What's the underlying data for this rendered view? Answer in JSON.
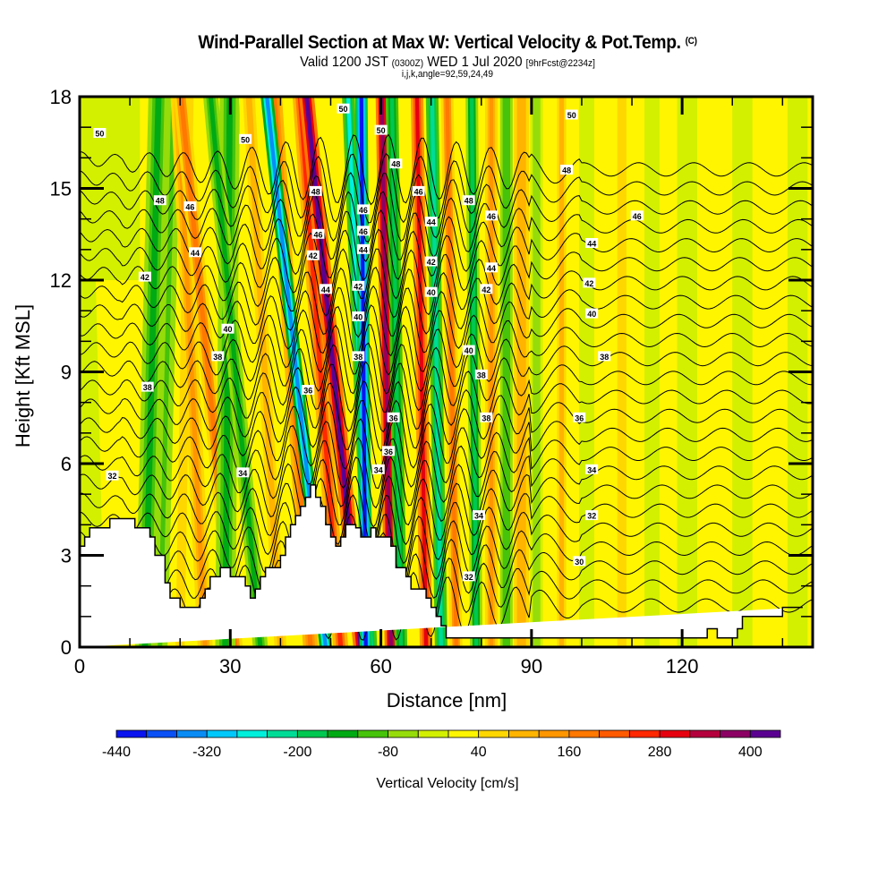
{
  "header": {
    "title": "Wind-Parallel Section at Max W: Vertical Velocity & Pot.Temp.",
    "copyright": "(C)",
    "valid_prefix": "Valid 1200 JST",
    "valid_utc": "(0300Z)",
    "valid_date": "WED 1 Jul 2020",
    "forecast": "[9hrFcst@2234z]",
    "grid_info": "i,j,k,angle=92,59,24,49"
  },
  "chart_data": {
    "type": "heatmap",
    "title": "Wind-Parallel Section at Max W: Vertical Velocity & Pot.Temp.",
    "xlabel": "Distance [nm]",
    "ylabel": "Height [Kft MSL]",
    "xlim": [
      0,
      146
    ],
    "ylim": [
      0,
      18
    ],
    "xticks": [
      0,
      30,
      60,
      90,
      120
    ],
    "yticks": [
      0,
      3,
      6,
      9,
      12,
      15,
      18
    ],
    "x_minor_step": 10,
    "y_minor_step": 1,
    "grid": false,
    "colorbar": {
      "title": "Vertical Velocity [cm/s]",
      "placement": "bottom",
      "min": -440,
      "max": 440,
      "step": 40,
      "tick_labels": [
        "-440",
        "-320",
        "-200",
        "-80",
        "40",
        "160",
        "280",
        "400"
      ],
      "tick_values": [
        -440,
        -320,
        -200,
        -80,
        40,
        160,
        280,
        400
      ],
      "colors": [
        "#0a14f0",
        "#0a50f5",
        "#0a8cf5",
        "#00c8fa",
        "#00f0dc",
        "#00dc96",
        "#00c850",
        "#00aa14",
        "#46c30a",
        "#96dc0a",
        "#d2f000",
        "#fff500",
        "#ffd700",
        "#ffb400",
        "#ff9600",
        "#ff7800",
        "#ff5a00",
        "#ff2800",
        "#e6000f",
        "#b4003c",
        "#8c0064",
        "#5a0091"
      ]
    },
    "terrain_kft": {
      "x_nm": [
        0,
        1,
        1,
        2,
        2,
        6,
        6,
        9,
        9,
        11,
        11,
        14,
        14,
        15,
        15,
        17,
        17,
        18,
        18,
        20,
        20,
        21,
        21,
        24,
        24,
        25,
        25,
        26,
        26,
        28,
        28,
        30,
        30,
        33,
        33,
        34,
        34,
        35,
        35,
        36,
        36,
        37,
        37,
        40,
        40,
        41,
        41,
        42,
        42,
        43,
        43,
        44,
        44,
        45,
        45,
        46,
        46,
        47,
        47,
        48,
        48,
        49,
        49,
        50,
        50,
        51,
        51,
        52,
        52,
        53,
        53,
        55,
        55,
        56,
        56,
        58,
        58,
        59,
        59,
        62,
        62,
        63,
        63,
        65,
        65,
        66,
        66,
        69,
        69,
        70,
        70,
        71,
        71,
        72,
        72,
        73,
        73,
        74,
        74,
        75,
        75,
        78,
        78,
        101,
        101,
        104,
        104,
        110,
        110,
        125,
        125,
        127,
        127,
        131,
        131,
        132,
        132,
        140,
        140,
        144,
        144,
        146
      ],
      "h_kft": [
        3.3,
        3.3,
        3.6,
        3.6,
        3.9,
        3.9,
        4.2,
        4.2,
        4.2,
        4.2,
        3.9,
        3.9,
        3.6,
        3.6,
        3.0,
        3.0,
        2.1,
        2.1,
        1.6,
        1.6,
        1.3,
        1.3,
        1.3,
        1.3,
        1.6,
        1.6,
        1.9,
        1.9,
        2.3,
        2.3,
        2.6,
        2.6,
        2.3,
        2.3,
        2.0,
        2.0,
        1.6,
        1.6,
        1.9,
        1.9,
        2.3,
        2.3,
        2.6,
        2.6,
        3.0,
        3.0,
        3.6,
        3.6,
        4.0,
        4.0,
        4.3,
        4.3,
        4.6,
        4.6,
        4.9,
        4.9,
        5.3,
        5.3,
        4.9,
        4.9,
        4.6,
        4.6,
        4.0,
        4.0,
        3.6,
        3.6,
        3.3,
        3.3,
        3.6,
        3.6,
        4.0,
        4.0,
        3.9,
        3.9,
        3.6,
        3.6,
        3.9,
        3.9,
        3.6,
        3.6,
        3.3,
        3.3,
        2.6,
        2.6,
        2.3,
        2.3,
        1.9,
        1.9,
        1.6,
        1.6,
        1.3,
        1.3,
        1.0,
        1.0,
        0.7,
        0.7,
        0.3,
        0.3,
        0.3,
        0.3,
        0.3,
        0.3,
        0.3,
        0.3,
        0.3,
        0.3,
        0.3,
        0.3,
        0.3,
        0.3,
        0.6,
        0.6,
        0.3,
        0.3,
        0.6,
        0.6,
        1.0,
        1.0,
        1.3,
        1.3,
        1.3
      ],
      "fill": "#ffffff"
    },
    "background_velocity_cm_s": 30,
    "velocity_bands": [
      {
        "x_base_nm": 2,
        "tilt_nm_per_kft": -0.15,
        "width_nm": 6,
        "w_cm_s": -20
      },
      {
        "x_base_nm": 13,
        "tilt_nm_per_kft": 0.15,
        "width_nm": 4,
        "w_cm_s": -160
      },
      {
        "x_base_nm": 16,
        "tilt_nm_per_kft": 0.15,
        "width_nm": 3,
        "w_cm_s": -90
      },
      {
        "x_base_nm": 20,
        "tilt_nm_per_kft": 0.1,
        "width_nm": 3,
        "w_cm_s": 60
      },
      {
        "x_base_nm": 25,
        "tilt_nm_per_kft": -0.3,
        "width_nm": 3,
        "w_cm_s": 120
      },
      {
        "x_base_nm": 31,
        "tilt_nm_per_kft": -0.6,
        "width_nm": 3,
        "w_cm_s": 160
      },
      {
        "x_base_nm": 29,
        "tilt_nm_per_kft": 0.05,
        "width_nm": 4,
        "w_cm_s": -130
      },
      {
        "x_base_nm": 36,
        "tilt_nm_per_kft": -0.55,
        "width_nm": 3,
        "w_cm_s": -150
      },
      {
        "x_base_nm": 40,
        "tilt_nm_per_kft": -0.35,
        "width_nm": 4,
        "w_cm_s": 80
      },
      {
        "x_base_nm": 46,
        "tilt_nm_per_kft": -0.4,
        "width_nm": 3,
        "w_cm_s": 190
      },
      {
        "x_base_nm": 49,
        "tilt_nm_per_kft": -0.65,
        "width_nm": 2.5,
        "w_cm_s": -330
      },
      {
        "x_base_nm": 52,
        "tilt_nm_per_kft": -0.45,
        "width_nm": 3,
        "w_cm_s": 260
      },
      {
        "x_base_nm": 56,
        "tilt_nm_per_kft": -0.6,
        "width_nm": 3,
        "w_cm_s": 400
      },
      {
        "x_base_nm": 58,
        "tilt_nm_per_kft": -0.25,
        "width_nm": 2.5,
        "w_cm_s": -260
      },
      {
        "x_base_nm": 57,
        "tilt_nm_per_kft": -0.05,
        "width_nm": 2.5,
        "w_cm_s": -420
      },
      {
        "x_base_nm": 62,
        "tilt_nm_per_kft": -0.1,
        "width_nm": 2.5,
        "w_cm_s": 380
      },
      {
        "x_base_nm": 64,
        "tilt_nm_per_kft": -0.1,
        "width_nm": 2.5,
        "w_cm_s": -200
      },
      {
        "x_base_nm": 69,
        "tilt_nm_per_kft": -0.1,
        "width_nm": 2.5,
        "w_cm_s": 300
      },
      {
        "x_base_nm": 72,
        "tilt_nm_per_kft": -0.1,
        "width_nm": 2.5,
        "w_cm_s": -230
      },
      {
        "x_base_nm": 75,
        "tilt_nm_per_kft": -0.1,
        "width_nm": 2.5,
        "w_cm_s": 170
      },
      {
        "x_base_nm": 79,
        "tilt_nm_per_kft": -0.05,
        "width_nm": 2.5,
        "w_cm_s": -170
      },
      {
        "x_base_nm": 82,
        "tilt_nm_per_kft": 0.0,
        "width_nm": 2.5,
        "w_cm_s": 150
      },
      {
        "x_base_nm": 85,
        "tilt_nm_per_kft": 0.0,
        "width_nm": 2.5,
        "w_cm_s": -120
      },
      {
        "x_base_nm": 88,
        "tilt_nm_per_kft": 0.0,
        "width_nm": 3,
        "w_cm_s": 110
      },
      {
        "x_base_nm": 91,
        "tilt_nm_per_kft": 0.0,
        "width_nm": 2.5,
        "w_cm_s": -60
      },
      {
        "x_base_nm": 96,
        "tilt_nm_per_kft": 0.0,
        "width_nm": 3,
        "w_cm_s": 80
      },
      {
        "x_base_nm": 101,
        "tilt_nm_per_kft": 0.0,
        "width_nm": 3,
        "w_cm_s": -20
      },
      {
        "x_base_nm": 108,
        "tilt_nm_per_kft": 0.0,
        "width_nm": 3,
        "w_cm_s": 60
      },
      {
        "x_base_nm": 114,
        "tilt_nm_per_kft": 0.0,
        "width_nm": 3,
        "w_cm_s": -10
      },
      {
        "x_base_nm": 121,
        "tilt_nm_per_kft": 0.0,
        "width_nm": 4,
        "w_cm_s": -10
      },
      {
        "x_base_nm": 132,
        "tilt_nm_per_kft": 0.0,
        "width_nm": 4,
        "w_cm_s": -10
      },
      {
        "x_base_nm": 143,
        "tilt_nm_per_kft": 0.0,
        "width_nm": 4,
        "w_cm_s": -10
      }
    ],
    "theta_contours": {
      "units": "K (labelled as last two digits, e.g. 32 = 302K)",
      "levels": [
        28,
        29,
        30,
        31,
        32,
        33,
        34,
        35,
        36,
        37,
        38,
        39,
        40,
        41,
        42,
        43,
        44,
        45,
        46,
        47,
        48,
        49,
        50,
        51
      ],
      "base_height_kft_at_level_30": 2.6,
      "spacing_kft_per_K": 0.62,
      "labels": [
        {
          "text": "50",
          "x_nm": 4,
          "y_kft": 16.8
        },
        {
          "text": "50",
          "x_nm": 33,
          "y_kft": 16.6
        },
        {
          "text": "48",
          "x_nm": 16,
          "y_kft": 14.6
        },
        {
          "text": "46",
          "x_nm": 22,
          "y_kft": 14.4
        },
        {
          "text": "44",
          "x_nm": 23,
          "y_kft": 12.9
        },
        {
          "text": "42",
          "x_nm": 13,
          "y_kft": 12.1
        },
        {
          "text": "40",
          "x_nm": 29.5,
          "y_kft": 10.4
        },
        {
          "text": "38",
          "x_nm": 27.5,
          "y_kft": 9.5
        },
        {
          "text": "38",
          "x_nm": 13.5,
          "y_kft": 8.5
        },
        {
          "text": "32",
          "x_nm": 6.5,
          "y_kft": 5.6
        },
        {
          "text": "34",
          "x_nm": 32.5,
          "y_kft": 5.7
        },
        {
          "text": "50",
          "x_nm": 52.5,
          "y_kft": 17.6
        },
        {
          "text": "50",
          "x_nm": 60,
          "y_kft": 16.9
        },
        {
          "text": "48",
          "x_nm": 47,
          "y_kft": 14.9
        },
        {
          "text": "48",
          "x_nm": 63,
          "y_kft": 15.8
        },
        {
          "text": "46",
          "x_nm": 47.5,
          "y_kft": 13.5
        },
        {
          "text": "46",
          "x_nm": 67.5,
          "y_kft": 14.9
        },
        {
          "text": "46",
          "x_nm": 56.5,
          "y_kft": 14.3
        },
        {
          "text": "46",
          "x_nm": 56.5,
          "y_kft": 13.6
        },
        {
          "text": "44",
          "x_nm": 56.5,
          "y_kft": 13.0
        },
        {
          "text": "44",
          "x_nm": 70,
          "y_kft": 13.9
        },
        {
          "text": "42",
          "x_nm": 46.5,
          "y_kft": 12.8
        },
        {
          "text": "44",
          "x_nm": 49,
          "y_kft": 11.7
        },
        {
          "text": "42",
          "x_nm": 55.5,
          "y_kft": 11.8
        },
        {
          "text": "42",
          "x_nm": 70,
          "y_kft": 12.6
        },
        {
          "text": "40",
          "x_nm": 70,
          "y_kft": 11.6
        },
        {
          "text": "40",
          "x_nm": 55.5,
          "y_kft": 10.8
        },
        {
          "text": "38",
          "x_nm": 55.5,
          "y_kft": 9.5
        },
        {
          "text": "36",
          "x_nm": 45.5,
          "y_kft": 8.4
        },
        {
          "text": "36",
          "x_nm": 62.5,
          "y_kft": 7.5
        },
        {
          "text": "36",
          "x_nm": 61.5,
          "y_kft": 6.4
        },
        {
          "text": "34",
          "x_nm": 59.5,
          "y_kft": 5.8
        },
        {
          "text": "48",
          "x_nm": 77.5,
          "y_kft": 14.6
        },
        {
          "text": "46",
          "x_nm": 82,
          "y_kft": 14.1
        },
        {
          "text": "44",
          "x_nm": 82,
          "y_kft": 12.4
        },
        {
          "text": "42",
          "x_nm": 81,
          "y_kft": 11.7
        },
        {
          "text": "40",
          "x_nm": 77.5,
          "y_kft": 9.7
        },
        {
          "text": "38",
          "x_nm": 80,
          "y_kft": 8.9
        },
        {
          "text": "38",
          "x_nm": 81,
          "y_kft": 7.5
        },
        {
          "text": "34",
          "x_nm": 79.5,
          "y_kft": 4.3
        },
        {
          "text": "32",
          "x_nm": 77.5,
          "y_kft": 2.3
        },
        {
          "text": "50",
          "x_nm": 98,
          "y_kft": 17.4
        },
        {
          "text": "48",
          "x_nm": 97,
          "y_kft": 15.6
        },
        {
          "text": "46",
          "x_nm": 111,
          "y_kft": 14.1
        },
        {
          "text": "44",
          "x_nm": 102,
          "y_kft": 13.2
        },
        {
          "text": "42",
          "x_nm": 101.5,
          "y_kft": 11.9
        },
        {
          "text": "40",
          "x_nm": 102,
          "y_kft": 10.9
        },
        {
          "text": "38",
          "x_nm": 104.5,
          "y_kft": 9.5
        },
        {
          "text": "36",
          "x_nm": 99.5,
          "y_kft": 7.5
        },
        {
          "text": "34",
          "x_nm": 102,
          "y_kft": 5.8
        },
        {
          "text": "32",
          "x_nm": 102,
          "y_kft": 4.3
        },
        {
          "text": "30",
          "x_nm": 99.5,
          "y_kft": 2.8
        }
      ]
    }
  }
}
